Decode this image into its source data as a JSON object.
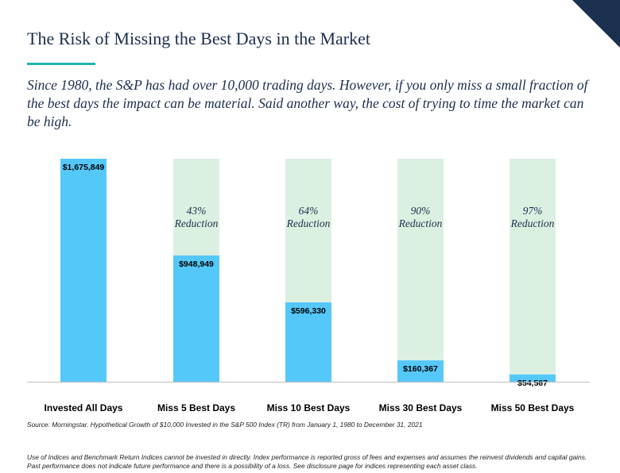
{
  "header": {
    "title": "The Risk of Missing the Best Days in the Market",
    "subtitle": "Since 1980, the S&P has had over 10,000 trading days. However, if you only miss a small fraction of the best days the impact can be material. Said another way, the cost of trying to time the market can be high."
  },
  "chart_data": {
    "type": "bar",
    "categories": [
      "Invested All Days",
      "Miss 5 Best Days",
      "Miss 10 Best Days",
      "Miss 30 Best Days",
      "Miss 50 Best Days"
    ],
    "values": [
      1675849,
      948949,
      596330,
      160367,
      54567
    ],
    "value_labels": [
      "$1,675,849",
      "$948,949",
      "$596,330",
      "$160,367",
      "$54,567"
    ],
    "reductions": [
      null,
      {
        "pct": "43%",
        "word": "Reduction"
      },
      {
        "pct": "64%",
        "word": "Reduction"
      },
      {
        "pct": "90%",
        "word": "Reduction"
      },
      {
        "pct": "97%",
        "word": "Reduction"
      }
    ],
    "ylim": [
      0,
      1675849
    ],
    "grid": false,
    "bar_color": "#55c8fa",
    "background_bar_color": "#dcf0e2"
  },
  "footer": {
    "source": "Source: Morningstar. Hypothetical Growth of $10,000 Invested in the S&P 500 Index (TR) from January 1, 1980 to December 31, 2021",
    "disclaimer": "Use of Indices and Benchmark Return Indices cannot be invested in directly. Index performance is reported gross of fees and expenses and assumes the reinvest dividends and capital gains. Past performance does not indicate future performance and there is a possibility of a loss. See disclosure page for indices representing each asset class."
  }
}
